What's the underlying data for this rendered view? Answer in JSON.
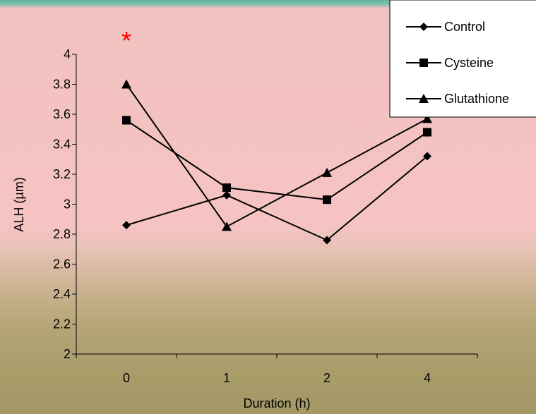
{
  "chart_data": {
    "type": "line",
    "categories": [
      "0",
      "1",
      "2",
      "4"
    ],
    "xlabel": "Duration (h)",
    "ylabel": "ALH (µm)",
    "ylim": [
      2,
      4
    ],
    "yticks": [
      "2",
      "2.2",
      "2.4",
      "2.6",
      "2.8",
      "3",
      "3.2",
      "3.4",
      "3.6",
      "3.8",
      "4"
    ],
    "series": [
      {
        "name": "Control",
        "marker": "diamond",
        "values": [
          2.86,
          3.06,
          2.76,
          3.32
        ]
      },
      {
        "name": "Cysteine",
        "marker": "square",
        "values": [
          3.56,
          3.11,
          3.03,
          3.48
        ]
      },
      {
        "name": "Glutathione",
        "marker": "triangle",
        "values": [
          3.8,
          2.85,
          3.21,
          3.57
        ]
      }
    ],
    "annotations": [
      {
        "text": "*",
        "category": "0",
        "color": "#ff0000"
      }
    ],
    "grid": false,
    "legend": "top-right"
  }
}
